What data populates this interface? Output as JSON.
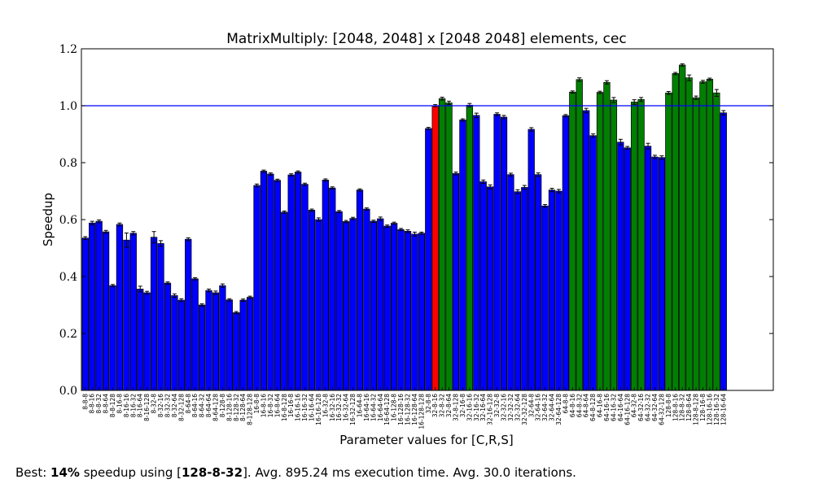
{
  "chart_data": {
    "type": "bar",
    "title": "MatrixMultiply: [2048, 2048] x [2048 2048] elements, cec",
    "xlabel": "Parameter values for [C,R,S]",
    "ylabel": "Speedup",
    "ylim": [
      0,
      1.2
    ],
    "yticks": [
      "0.0",
      "0.2",
      "0.4",
      "0.6",
      "0.8",
      "1.0",
      "1.2"
    ],
    "reference_line": 1.0,
    "grid": false,
    "legend": "none",
    "colors": {
      "below": "#0000ff",
      "baseline": "#ff0000",
      "above": "#008000",
      "reference": "#0000ff"
    },
    "baseline_category": "32-8-16",
    "categories": [
      "8-8-8",
      "8-8-16",
      "8-8-32",
      "8-8-64",
      "8-8-128",
      "8-16-8",
      "8-16-16",
      "8-16-32",
      "8-16-64",
      "8-16-128",
      "8-32-8",
      "8-32-16",
      "8-32-32",
      "8-32-64",
      "8-32-128",
      "8-64-8",
      "8-64-16",
      "8-64-32",
      "8-64-64",
      "8-64-128",
      "8-128-8",
      "8-128-16",
      "8-128-32",
      "8-128-64",
      "8-128-128",
      "16-8-8",
      "16-8-16",
      "16-8-32",
      "16-8-64",
      "16-8-128",
      "16-16-8",
      "16-16-16",
      "16-16-32",
      "16-16-64",
      "16-16-128",
      "16-32-8",
      "16-32-16",
      "16-32-32",
      "16-32-64",
      "16-32-128",
      "16-64-8",
      "16-64-16",
      "16-64-32",
      "16-64-64",
      "16-64-128",
      "16-128-8",
      "16-128-16",
      "16-128-32",
      "16-128-64",
      "16-128-128",
      "32-8-8",
      "32-8-16",
      "32-8-32",
      "32-8-64",
      "32-8-128",
      "32-16-8",
      "32-16-16",
      "32-16-32",
      "32-16-64",
      "32-16-128",
      "32-32-8",
      "32-32-16",
      "32-32-32",
      "32-32-64",
      "32-32-128",
      "32-64-8",
      "32-64-16",
      "32-64-32",
      "32-64-64",
      "32-64-128",
      "64-8-8",
      "64-8-16",
      "64-8-32",
      "64-8-64",
      "64-8-128",
      "64-16-8",
      "64-16-16",
      "64-16-32",
      "64-16-64",
      "64-16-128",
      "64-32-8",
      "64-32-16",
      "64-32-32",
      "64-32-64",
      "64-32-128",
      "128-8-8",
      "128-8-16",
      "128-8-32",
      "128-8-64",
      "128-8-128",
      "128-16-8",
      "128-16-16",
      "128-16-32",
      "128-16-64"
    ],
    "values": [
      0.535,
      0.588,
      0.594,
      0.557,
      0.368,
      0.583,
      0.528,
      0.552,
      0.356,
      0.343,
      0.538,
      0.516,
      0.377,
      0.333,
      0.317,
      0.531,
      0.392,
      0.3,
      0.351,
      0.343,
      0.368,
      0.318,
      0.273,
      0.317,
      0.327,
      0.72,
      0.77,
      0.76,
      0.738,
      0.626,
      0.757,
      0.767,
      0.724,
      0.633,
      0.6,
      0.739,
      0.711,
      0.628,
      0.593,
      0.604,
      0.704,
      0.637,
      0.594,
      0.603,
      0.577,
      0.587,
      0.565,
      0.559,
      0.549,
      0.552,
      0.92,
      1.0,
      1.025,
      1.01,
      0.762,
      0.95,
      1.002,
      0.966,
      0.733,
      0.715,
      0.97,
      0.96,
      0.758,
      0.698,
      0.713,
      0.917,
      0.758,
      0.648,
      0.704,
      0.7,
      0.965,
      1.048,
      1.092,
      0.983,
      0.895,
      1.047,
      1.082,
      1.02,
      0.872,
      0.852,
      1.013,
      1.022,
      0.858,
      0.82,
      0.818,
      1.045,
      1.113,
      1.143,
      1.098,
      1.028,
      1.084,
      1.093,
      1.045,
      0.975
    ],
    "errors": [
      0.005,
      0.006,
      0.005,
      0.005,
      0.004,
      0.005,
      0.025,
      0.006,
      0.01,
      0.005,
      0.02,
      0.01,
      0.004,
      0.006,
      0.005,
      0.005,
      0.004,
      0.004,
      0.005,
      0.006,
      0.006,
      0.004,
      0.004,
      0.004,
      0.004,
      0.005,
      0.004,
      0.004,
      0.004,
      0.004,
      0.004,
      0.004,
      0.004,
      0.004,
      0.006,
      0.004,
      0.004,
      0.004,
      0.004,
      0.004,
      0.004,
      0.004,
      0.004,
      0.006,
      0.004,
      0.004,
      0.004,
      0.005,
      0.007,
      0.004,
      0.004,
      0.004,
      0.005,
      0.006,
      0.005,
      0.004,
      0.006,
      0.008,
      0.006,
      0.007,
      0.005,
      0.006,
      0.005,
      0.007,
      0.007,
      0.006,
      0.006,
      0.005,
      0.006,
      0.006,
      0.004,
      0.004,
      0.006,
      0.008,
      0.006,
      0.004,
      0.006,
      0.009,
      0.01,
      0.005,
      0.008,
      0.007,
      0.01,
      0.006,
      0.006,
      0.005,
      0.004,
      0.004,
      0.01,
      0.006,
      0.005,
      0.004,
      0.012,
      0.008
    ]
  },
  "caption": {
    "prefix": "Best: ",
    "percent": "14%",
    "middle": " speedup using [",
    "config": "128-8-32",
    "suffix": "]. Avg. 895.24 ms execution time. Avg. 30.0 iterations."
  }
}
